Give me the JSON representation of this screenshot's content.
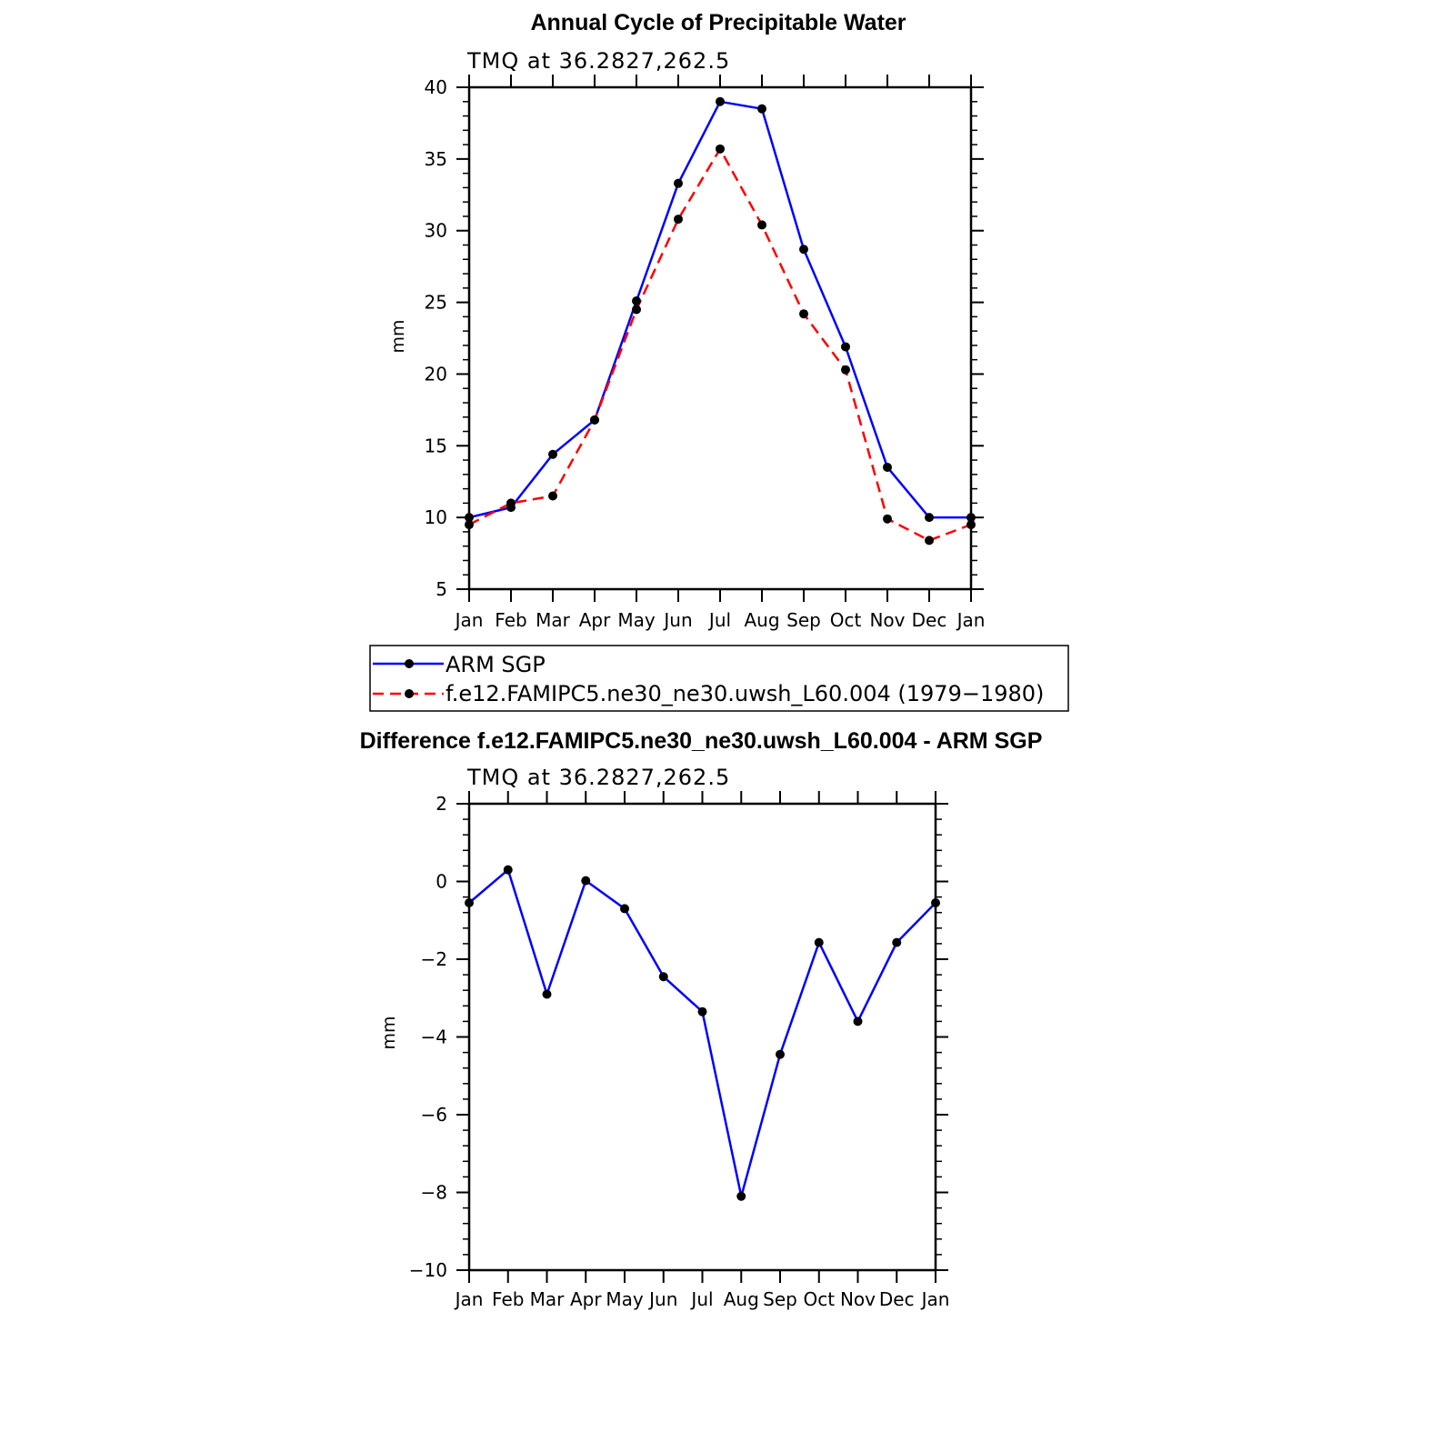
{
  "chart_data": [
    {
      "type": "line",
      "title": "Annual Cycle of Precipitable Water",
      "subtitle": "TMQ at 36.2827,262.5",
      "xlabel": "",
      "ylabel": "mm",
      "categories": [
        "Jan",
        "Feb",
        "Mar",
        "Apr",
        "May",
        "Jun",
        "Jul",
        "Aug",
        "Sep",
        "Oct",
        "Nov",
        "Dec",
        "Jan"
      ],
      "ylim": [
        5,
        40
      ],
      "yticks": [
        "5",
        "10",
        "15",
        "20",
        "25",
        "30",
        "35",
        "40"
      ],
      "grid": false,
      "legend": "below",
      "series": [
        {
          "name": "ARM SGP",
          "color": "#0000ff",
          "style": "solid",
          "values": [
            10.0,
            10.7,
            14.4,
            16.8,
            25.1,
            33.3,
            39.0,
            38.5,
            28.7,
            21.9,
            13.5,
            10.0,
            10.0
          ]
        },
        {
          "name": "f.e12.FAMIPC5.ne30_ne30.uwsh_L60.004 (1979−1980)",
          "color": "#ff0000",
          "style": "dashed",
          "values": [
            9.5,
            11.0,
            11.5,
            16.8,
            24.5,
            30.8,
            35.7,
            30.4,
            24.2,
            20.3,
            9.9,
            8.4,
            9.5
          ]
        }
      ]
    },
    {
      "type": "line",
      "title": "Difference f.e12.FAMIPC5.ne30_ne30.uwsh_L60.004 - ARM SGP",
      "subtitle": "TMQ at 36.2827,262.5",
      "xlabel": "",
      "ylabel": "mm",
      "categories": [
        "Jan",
        "Feb",
        "Mar",
        "Apr",
        "May",
        "Jun",
        "Jul",
        "Aug",
        "Sep",
        "Oct",
        "Nov",
        "Dec",
        "Jan"
      ],
      "ylim": [
        -10,
        2
      ],
      "yticks": [
        "−10",
        "−8",
        "−6",
        "−4",
        "−2",
        "0",
        "2"
      ],
      "grid": false,
      "legend": "none",
      "series": [
        {
          "color": "#0000ff",
          "style": "solid",
          "values": [
            -0.55,
            0.3,
            -2.9,
            0.02,
            -0.7,
            -2.45,
            -3.35,
            -8.1,
            -4.45,
            -1.57,
            -3.6,
            -1.57,
            -0.55
          ]
        }
      ]
    }
  ]
}
